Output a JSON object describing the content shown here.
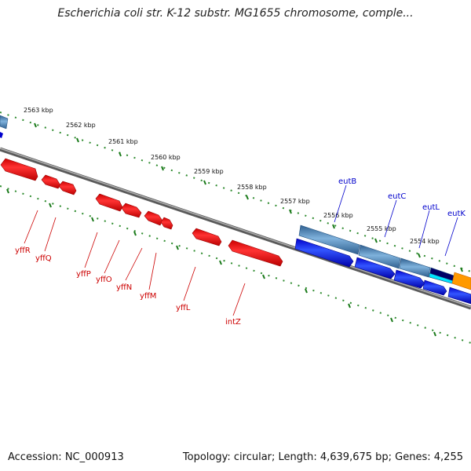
{
  "title": "Escherichia coli str. K-12 substr. MG1655 chromosome, comple...",
  "footer": {
    "accession": "Accession: NC_000913",
    "topology": "Topology: circular; Length: 4,639,675 bp; Genes: 4,255"
  },
  "kbp_labels": [
    "2563 kbp",
    "2562 kbp",
    "2561 kbp",
    "2560 kbp",
    "2559 kbp",
    "2558 kbp",
    "2557 kbp",
    "2556 kbp",
    "2555 kbp",
    "2554 kbp"
  ],
  "genes_reverse": [
    "yffR",
    "yffQ",
    "yffP",
    "yffO",
    "yffN",
    "yffM",
    "yffL",
    "intZ"
  ],
  "genes_forward": [
    "eutB",
    "eutC",
    "eutL",
    "eutK"
  ],
  "colors": {
    "reverse_gene": "#ff0000",
    "forward_gene": "#0000ee",
    "ticks": "#2e8b2e",
    "backbone": "#888888",
    "label_red": "#cc0000",
    "label_blue": "#0000cc"
  }
}
